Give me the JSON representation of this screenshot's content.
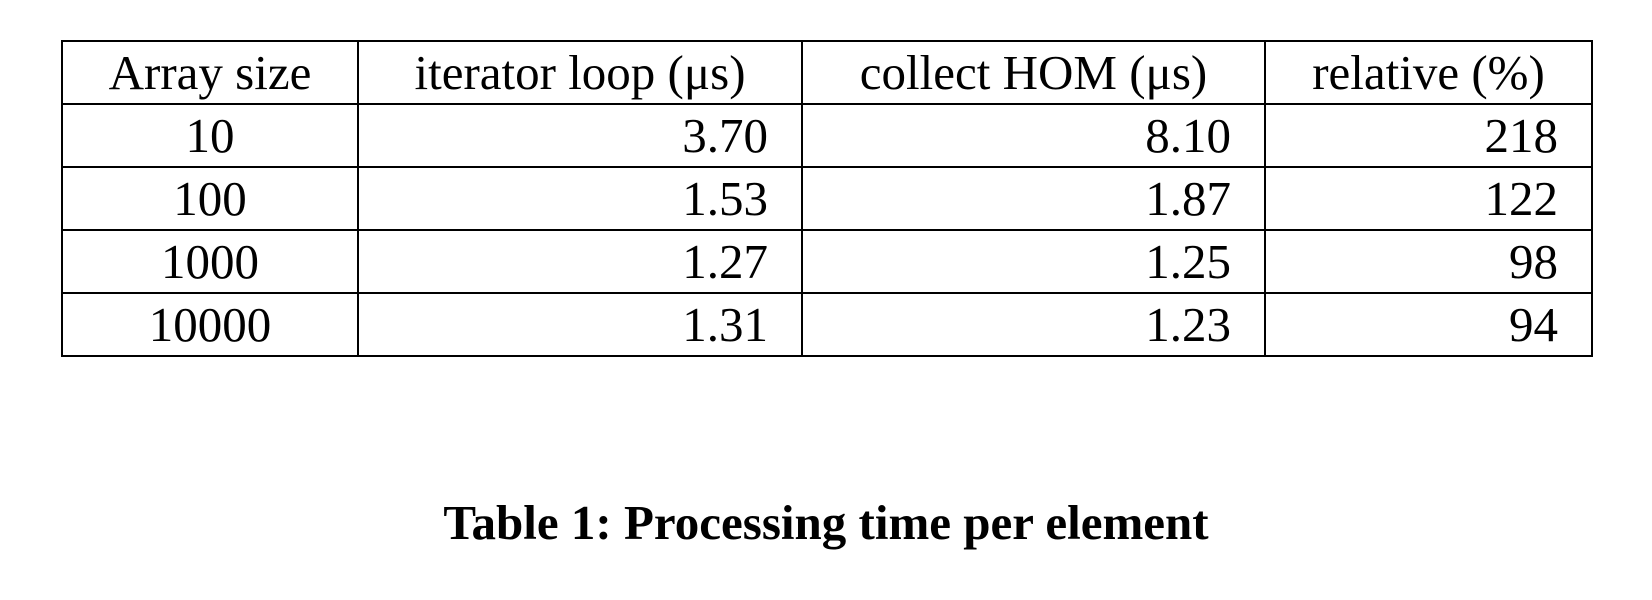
{
  "table": {
    "headers": [
      "Array size",
      "iterator loop (μs)",
      "collect HOM (μs)",
      "relative (%)"
    ],
    "rows": [
      [
        "10",
        "3.70",
        "8.10",
        "218"
      ],
      [
        "100",
        "1.53",
        "1.87",
        "122"
      ],
      [
        "1000",
        "1.27",
        "1.25",
        "98"
      ],
      [
        "10000",
        "1.31",
        "1.23",
        "94"
      ]
    ]
  },
  "caption": "Table 1: Processing time per element"
}
